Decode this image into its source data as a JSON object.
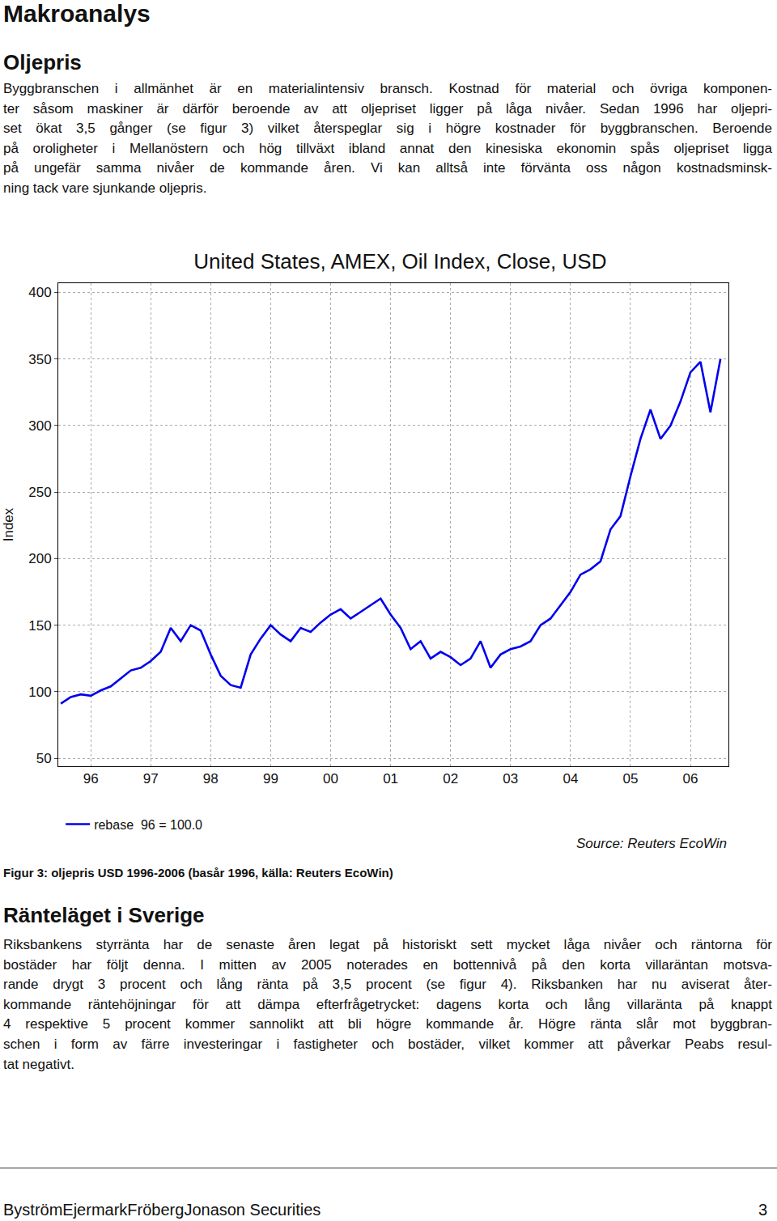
{
  "page": {
    "heading": "Makroanalys",
    "section1": {
      "title": "Oljepris",
      "lines": [
        "Byggbranschen i allmänhet är en materialintensiv bransch. Kostnad för material och övriga komponen-",
        "ter såsom maskiner är därför beroende av att oljepriset ligger på låga nivåer. Sedan 1996 har oljepri-",
        "set ökat 3,5 gånger (se figur 3) vilket återspeglar sig i högre kostnader för byggbranschen. Beroende",
        "på oroligheter i Mellanöstern och hög tillväxt ibland annat den kinesiska ekonomin spås oljepriset ligga",
        "på ungefär samma nivåer de kommande åren. Vi kan alltså inte förvänta oss någon kostnadsminsk-",
        "ning tack vare sjunkande oljepris."
      ]
    },
    "caption": "Figur 3: oljepris USD 1996-2006 (basår 1996, källa: Reuters EcoWin)",
    "section2": {
      "title": "Ränteläget i Sverige",
      "lines": [
        "Riksbankens styrränta har de senaste åren legat på historiskt sett mycket låga nivåer och räntorna för",
        "bostäder har följt denna. I mitten av 2005 noterades en bottennivå på den korta villaräntan motsva-",
        "rande drygt 3 procent och lång ränta på 3,5 procent (se figur 4). Riksbanken har nu aviserat åter-",
        "kommande räntehöjningar för att dämpa efterfrågetrycket: dagens korta och lång villaränta på knappt",
        "4 respektive 5 procent kommer sannolikt att bli högre kommande år. Högre ränta slår mot byggbran-",
        "schen i form av färre investeringar i fastigheter och bostäder, vilket kommer att påverkar Peabs resul-",
        "tat negativt."
      ]
    },
    "footer": {
      "left": "ByströmEjermarkFrö­bergJonason Securities",
      "right": "3"
    }
  },
  "chart_data": {
    "type": "line",
    "title": "United States, AMEX, Oil Index, Close, USD",
    "y_label": "Index",
    "source": "Source: Reuters EcoWin",
    "categories": [
      null,
      null,
      null,
      "96",
      null,
      null,
      null,
      null,
      null,
      "97",
      null,
      null,
      null,
      null,
      null,
      "98",
      null,
      null,
      null,
      null,
      null,
      "99",
      null,
      null,
      null,
      null,
      null,
      "00",
      null,
      null,
      null,
      null,
      null,
      "01",
      null,
      null,
      null,
      null,
      null,
      "02",
      null,
      null,
      null,
      null,
      null,
      "03",
      null,
      null,
      null,
      null,
      null,
      "04",
      null,
      null,
      null,
      null,
      null,
      "05",
      null,
      null,
      null,
      null,
      null,
      "06",
      null,
      null,
      null
    ],
    "series": [
      {
        "name": "rebase  96 = 100.0",
        "color": "#0000ee",
        "values": [
          91,
          96,
          98,
          97,
          101,
          104,
          110,
          116,
          118,
          123,
          130,
          148,
          138,
          150,
          146,
          128,
          112,
          105,
          103,
          128,
          140,
          150,
          143,
          138,
          148,
          145,
          152,
          158,
          162,
          155,
          160,
          165,
          170,
          158,
          148,
          132,
          138,
          125,
          130,
          126,
          120,
          125,
          138,
          118,
          128,
          132,
          134,
          138,
          150,
          155,
          165,
          175,
          188,
          192,
          198,
          222,
          232,
          262,
          290,
          312,
          290,
          300,
          318,
          340,
          348,
          310,
          350
        ]
      }
    ],
    "ylim": [
      44,
      407
    ],
    "yticks": [
      50,
      100,
      150,
      200,
      250,
      300,
      350,
      400
    ],
    "grid": true,
    "legend": "bottom"
  }
}
